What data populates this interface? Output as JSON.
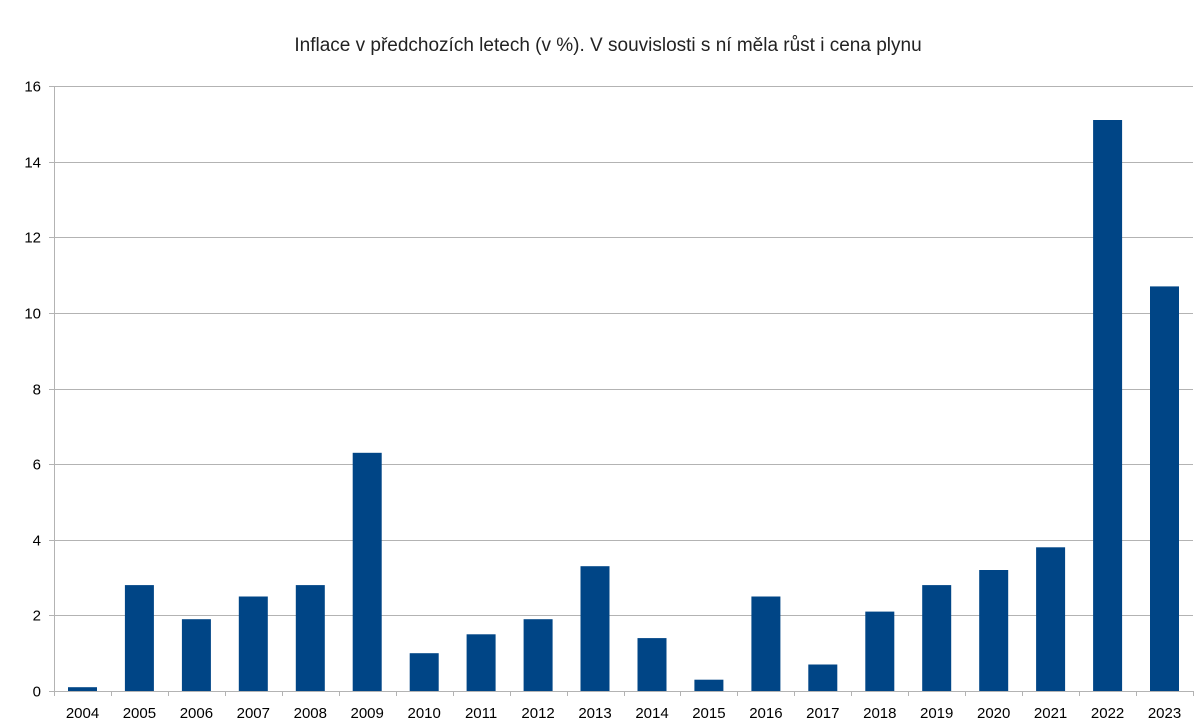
{
  "chart_data": {
    "type": "bar",
    "title": "Inflace v předchozích letech (v %). V souvislosti s ní měla růst i cena plynu",
    "categories": [
      "2004",
      "2005",
      "2006",
      "2007",
      "2008",
      "2009",
      "2010",
      "2011",
      "2012",
      "2013",
      "2014",
      "2015",
      "2016",
      "2017",
      "2018",
      "2019",
      "2020",
      "2021",
      "2022",
      "2023"
    ],
    "values": [
      0.1,
      2.8,
      1.9,
      2.5,
      2.8,
      6.3,
      1.0,
      1.5,
      1.9,
      3.3,
      1.4,
      0.3,
      2.5,
      0.7,
      2.1,
      2.8,
      3.2,
      3.8,
      15.1,
      10.7
    ],
    "ylim": [
      0,
      16
    ],
    "yticks": [
      0,
      2,
      4,
      6,
      8,
      10,
      12,
      14,
      16
    ],
    "grid": true,
    "legend": "none",
    "colors": {
      "bar": "#004586",
      "grid": "#b3b3b3",
      "background": "#ffffff"
    }
  }
}
